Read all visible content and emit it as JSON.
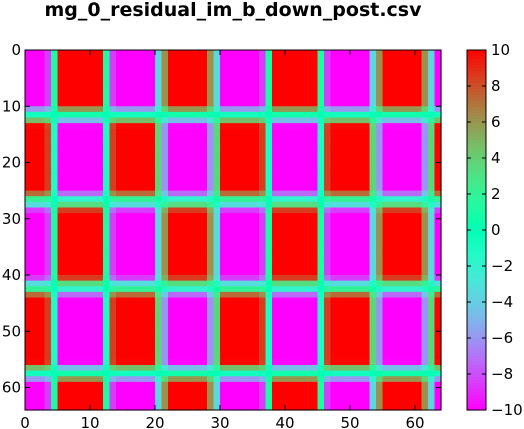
{
  "chart_data": {
    "type": "heatmap",
    "title": "mg_0_residual_im_b_down_post.csv",
    "xlabel": "",
    "ylabel": "",
    "grid": false,
    "colormap": "rainbow",
    "rows": 64,
    "cols": 64,
    "value_range": [
      -10,
      10
    ],
    "x_ticks": [
      0,
      10,
      20,
      30,
      40,
      50,
      60
    ],
    "y_ticks": [
      0,
      10,
      20,
      30,
      40,
      50,
      60
    ],
    "colorbar_ticks": [
      10,
      8,
      6,
      4,
      2,
      0,
      -2,
      -4,
      -6,
      -8,
      -10
    ],
    "colorbar_labels": [
      "10",
      "8",
      "6",
      "4",
      "2",
      "0",
      "−2",
      "−4",
      "−6",
      "−8",
      "−10"
    ],
    "field": {
      "description": "value(r,c) = 10 * row_pattern(r) * col_pattern(c), each pattern a clipped cosine, sign-alternating bands",
      "row_period": 30.5,
      "row_phase": 3.5,
      "col_period": 16.5,
      "col_phase": 8.0
    }
  }
}
